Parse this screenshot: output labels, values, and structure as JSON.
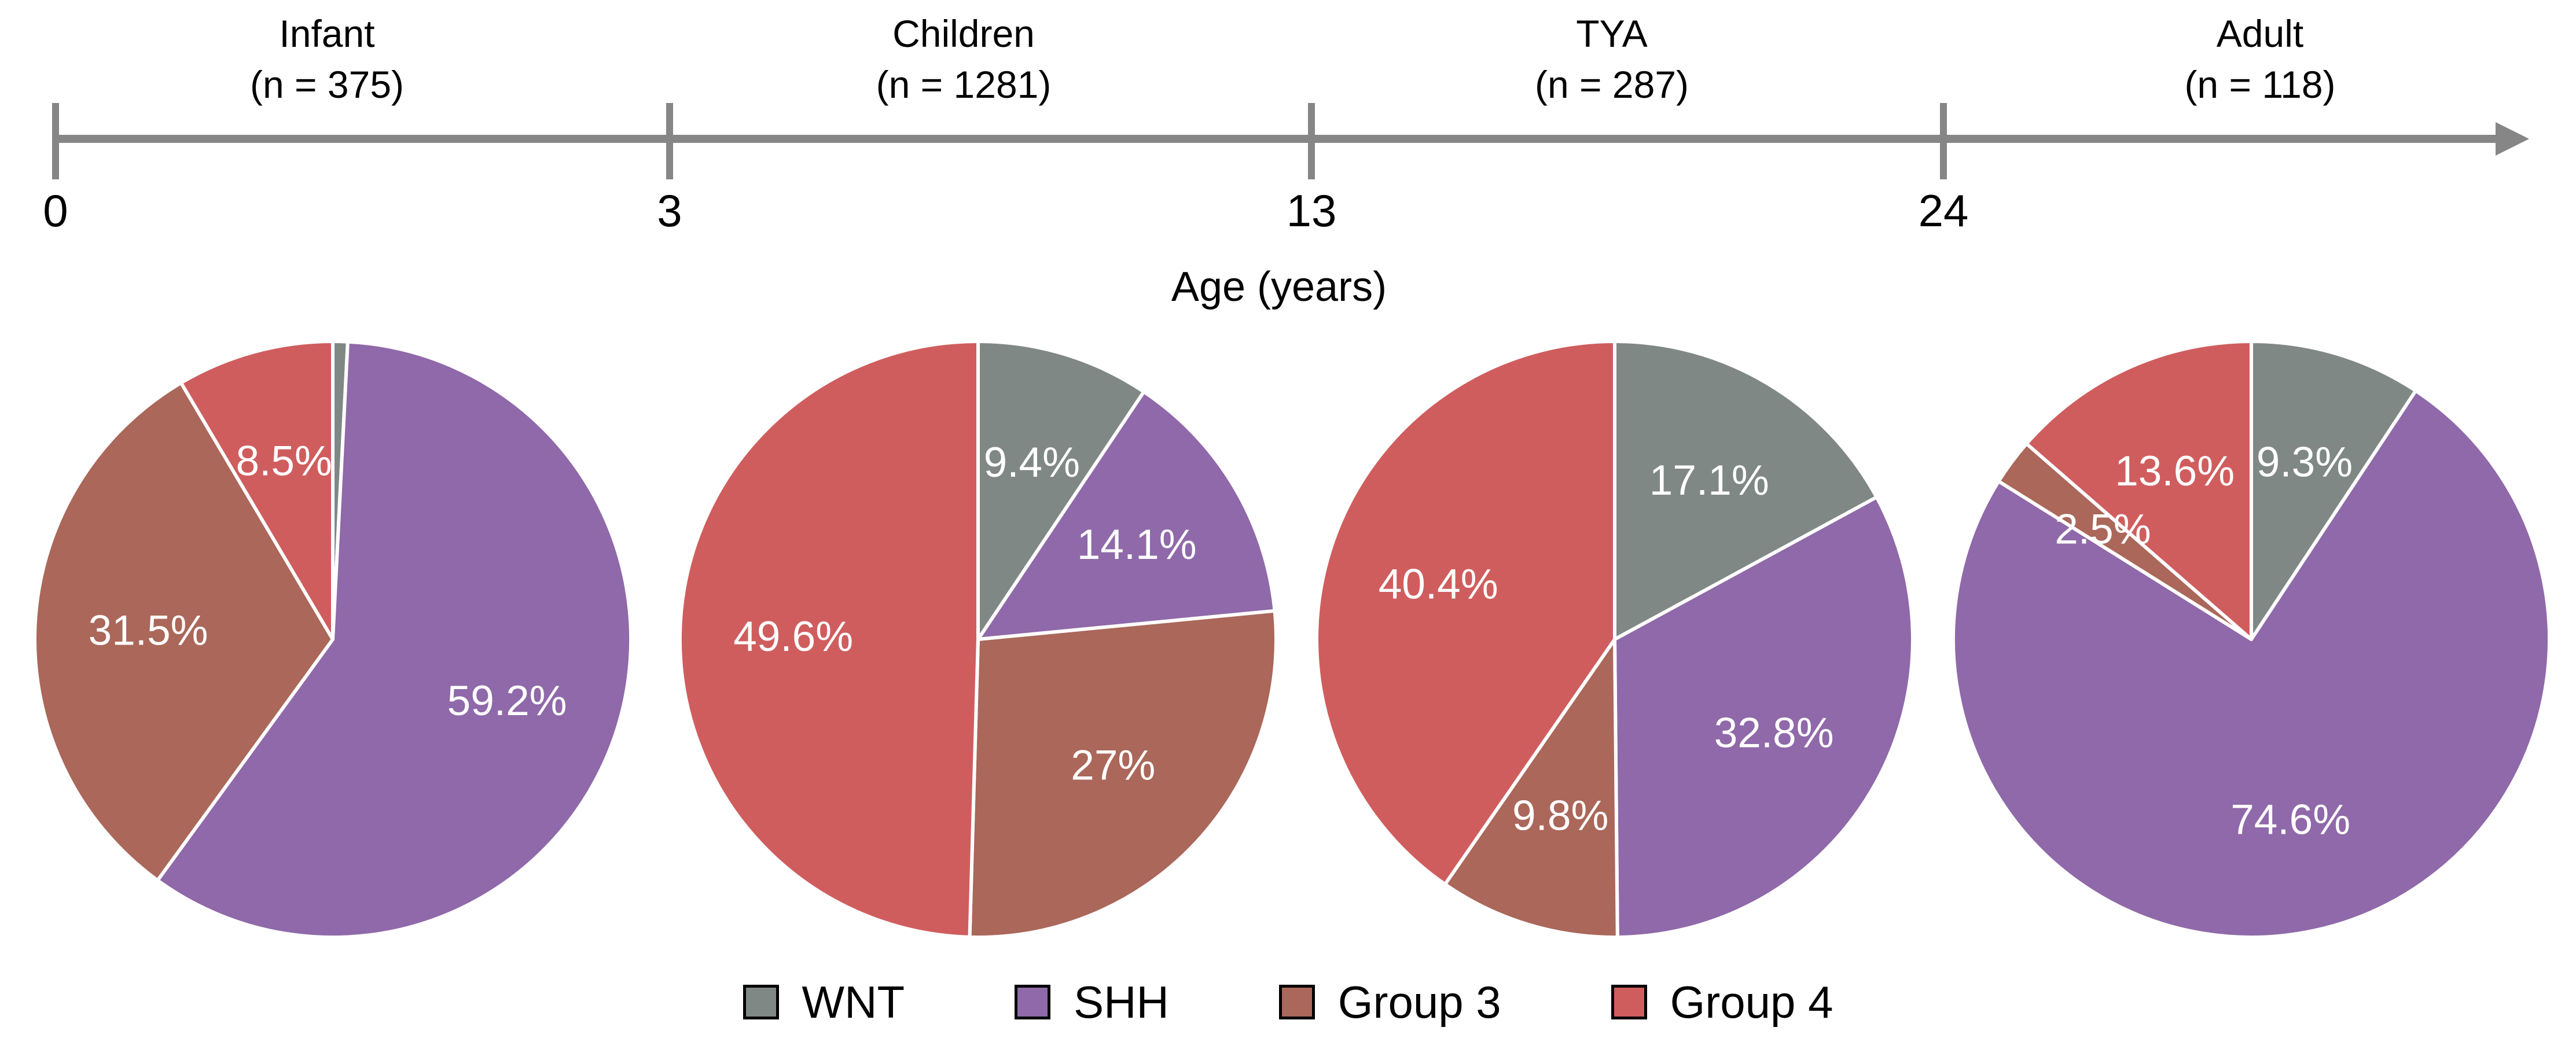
{
  "figure": {
    "background": "#ffffff",
    "axis_color": "#868686",
    "text_color": "#000000",
    "pct_label_color": "#ffffff",
    "axis_title": "Age (years)"
  },
  "timeline": {
    "ticks": [
      "0",
      "3",
      "13",
      "24"
    ],
    "groups": [
      {
        "name": "Infant",
        "n": "(n = 375)"
      },
      {
        "name": "Children",
        "n": "(n = 1281)"
      },
      {
        "name": "TYA",
        "n": "(n = 287)"
      },
      {
        "name": "Adult",
        "n": "(n = 118)"
      }
    ]
  },
  "legend": {
    "items": [
      {
        "label": "WNT",
        "color": "#808885"
      },
      {
        "label": "SHH",
        "color": "#8F69A9"
      },
      {
        "label": "Group 3",
        "color": "#AA675A"
      },
      {
        "label": "Group 4",
        "color": "#D05D5E"
      }
    ]
  },
  "chart_data": [
    {
      "type": "pie",
      "age_group": "Infant",
      "n": 375,
      "categories": [
        "WNT",
        "SHH",
        "Group 3",
        "Group 4"
      ],
      "values": [
        0.8,
        59.2,
        31.5,
        8.5
      ],
      "labels": [
        "",
        "59.2%",
        "31.5%",
        "8.5%"
      ],
      "start": "12-oclock",
      "direction": "clockwise"
    },
    {
      "type": "pie",
      "age_group": "Children",
      "n": 1281,
      "categories": [
        "WNT",
        "SHH",
        "Group 3",
        "Group 4"
      ],
      "values": [
        9.4,
        14.1,
        27,
        49.6
      ],
      "labels": [
        "9.4%",
        "14.1%",
        "27%",
        "49.6%"
      ],
      "start": "12-oclock",
      "direction": "clockwise"
    },
    {
      "type": "pie",
      "age_group": "TYA",
      "n": 287,
      "categories": [
        "WNT",
        "SHH",
        "Group 3",
        "Group 4"
      ],
      "values": [
        17.1,
        32.8,
        9.8,
        40.4
      ],
      "labels": [
        "17.1%",
        "32.8%",
        "9.8%",
        "40.4%"
      ],
      "start": "12-oclock",
      "direction": "clockwise"
    },
    {
      "type": "pie",
      "age_group": "Adult",
      "n": 118,
      "categories": [
        "WNT",
        "SHH",
        "Group 3",
        "Group 4"
      ],
      "values": [
        9.3,
        74.6,
        2.5,
        13.6
      ],
      "labels": [
        "9.3%",
        "74.6%",
        "2.5%",
        "13.6%"
      ],
      "start": "12-oclock",
      "direction": "clockwise"
    }
  ]
}
